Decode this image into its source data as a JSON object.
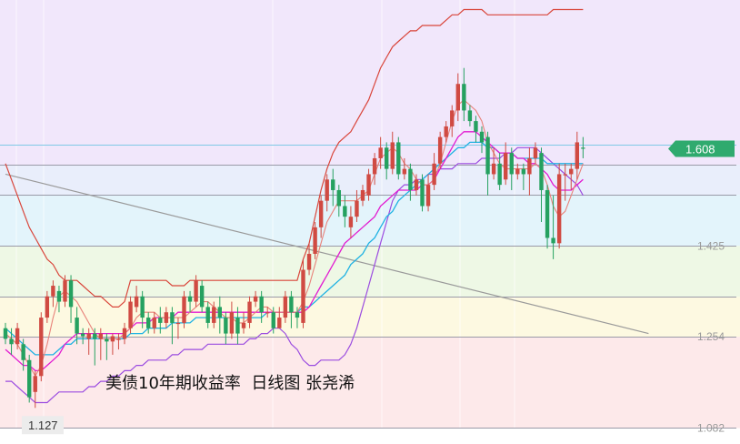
{
  "caption": "美债10年期收益率  日线图 张尧浠",
  "chart_data": {
    "type": "candlestick",
    "title": "美债10年期收益率  日线图 张尧浠",
    "y_ticks": [
      1.425,
      1.254,
      1.082
    ],
    "y_tick_labels": [
      "1.425",
      "1.254",
      "1.082"
    ],
    "last_price": 1.608,
    "last_price_label": "1.608",
    "low_label": "1.127",
    "low_value": 1.127,
    "ylim": [
      1.052,
      1.888
    ],
    "colors": {
      "up": "#d04a42",
      "down": "#25a160",
      "upper_band": "#d9453a",
      "lower_band": "#9b4ce0",
      "ma_short": "#e8827a",
      "ma_mid": "#e21bd1",
      "ma_long": "#1fb2e3",
      "trendline": "#9a9a9a",
      "last_label_bg": "#2faa6e"
    },
    "background_bands": [
      {
        "from": 1.578,
        "to": 1.888,
        "color": "#f1e7fb"
      },
      {
        "from": 1.521,
        "to": 1.578,
        "color": "#e9eefb"
      },
      {
        "from": 1.425,
        "to": 1.521,
        "color": "#e3f4fb"
      },
      {
        "from": 1.329,
        "to": 1.425,
        "color": "#eef8e5"
      },
      {
        "from": 1.254,
        "to": 1.329,
        "color": "#fdf9e1"
      },
      {
        "from": 1.082,
        "to": 1.254,
        "color": "#fde9ea"
      },
      {
        "from": 1.052,
        "to": 1.082,
        "color": "#ffffff"
      }
    ],
    "horizontal_lines": [
      1.616,
      1.578,
      1.521,
      1.425,
      1.329,
      1.254,
      1.082
    ],
    "trendline": [
      [
        0,
        1.56
      ],
      [
        108,
        1.26
      ]
    ],
    "candles": [
      [
        1.27,
        1.25,
        1.28,
        1.24
      ],
      [
        1.25,
        1.24,
        1.27,
        1.22
      ],
      [
        1.24,
        1.27,
        1.28,
        1.23
      ],
      [
        1.24,
        1.21,
        1.25,
        1.19
      ],
      [
        1.21,
        1.14,
        1.22,
        1.13
      ],
      [
        1.15,
        1.18,
        1.19,
        1.12
      ],
      [
        1.18,
        1.29,
        1.3,
        1.17
      ],
      [
        1.29,
        1.33,
        1.34,
        1.28
      ],
      [
        1.33,
        1.35,
        1.36,
        1.31
      ],
      [
        1.34,
        1.32,
        1.35,
        1.3
      ],
      [
        1.32,
        1.36,
        1.37,
        1.31
      ],
      [
        1.36,
        1.31,
        1.37,
        1.28
      ],
      [
        1.29,
        1.26,
        1.31,
        1.24
      ],
      [
        1.26,
        1.255,
        1.27,
        1.24
      ],
      [
        1.25,
        1.26,
        1.27,
        1.22
      ],
      [
        1.26,
        1.25,
        1.27,
        1.2
      ],
      [
        1.25,
        1.26,
        1.27,
        1.21
      ],
      [
        1.25,
        1.245,
        1.26,
        1.21
      ],
      [
        1.245,
        1.255,
        1.26,
        1.22
      ],
      [
        1.25,
        1.25,
        1.26,
        1.23
      ],
      [
        1.25,
        1.27,
        1.28,
        1.24
      ],
      [
        1.27,
        1.32,
        1.33,
        1.26
      ],
      [
        1.31,
        1.33,
        1.35,
        1.3
      ],
      [
        1.33,
        1.29,
        1.34,
        1.27
      ],
      [
        1.29,
        1.27,
        1.3,
        1.26
      ],
      [
        1.27,
        1.29,
        1.3,
        1.26
      ],
      [
        1.29,
        1.28,
        1.31,
        1.26
      ],
      [
        1.28,
        1.3,
        1.31,
        1.27
      ],
      [
        1.3,
        1.28,
        1.31,
        1.24
      ],
      [
        1.28,
        1.28,
        1.29,
        1.25
      ],
      [
        1.28,
        1.33,
        1.34,
        1.27
      ],
      [
        1.33,
        1.32,
        1.34,
        1.3
      ],
      [
        1.32,
        1.36,
        1.37,
        1.31
      ],
      [
        1.35,
        1.31,
        1.36,
        1.3
      ],
      [
        1.31,
        1.28,
        1.32,
        1.27
      ],
      [
        1.28,
        1.31,
        1.32,
        1.27
      ],
      [
        1.31,
        1.29,
        1.33,
        1.26
      ],
      [
        1.29,
        1.26,
        1.3,
        1.24
      ],
      [
        1.26,
        1.3,
        1.32,
        1.25
      ],
      [
        1.29,
        1.26,
        1.31,
        1.24
      ],
      [
        1.27,
        1.28,
        1.3,
        1.26
      ],
      [
        1.28,
        1.32,
        1.33,
        1.27
      ],
      [
        1.32,
        1.33,
        1.34,
        1.31
      ],
      [
        1.33,
        1.3,
        1.34,
        1.28
      ],
      [
        1.3,
        1.3,
        1.31,
        1.29
      ],
      [
        1.3,
        1.27,
        1.31,
        1.26
      ],
      [
        1.27,
        1.29,
        1.31,
        1.27
      ],
      [
        1.29,
        1.33,
        1.34,
        1.28
      ],
      [
        1.33,
        1.3,
        1.34,
        1.27
      ],
      [
        1.3,
        1.29,
        1.31,
        1.27
      ],
      [
        1.28,
        1.38,
        1.4,
        1.27
      ],
      [
        1.38,
        1.41,
        1.43,
        1.37
      ],
      [
        1.41,
        1.46,
        1.47,
        1.4
      ],
      [
        1.46,
        1.51,
        1.52,
        1.44
      ],
      [
        1.51,
        1.55,
        1.56,
        1.49
      ],
      [
        1.55,
        1.53,
        1.57,
        1.5
      ],
      [
        1.53,
        1.5,
        1.54,
        1.48
      ],
      [
        1.5,
        1.48,
        1.52,
        1.46
      ],
      [
        1.46,
        1.48,
        1.5,
        1.44
      ],
      [
        1.48,
        1.51,
        1.53,
        1.47
      ],
      [
        1.51,
        1.53,
        1.54,
        1.5
      ],
      [
        1.52,
        1.56,
        1.57,
        1.51
      ],
      [
        1.56,
        1.59,
        1.6,
        1.54
      ],
      [
        1.59,
        1.61,
        1.63,
        1.57
      ],
      [
        1.61,
        1.57,
        1.62,
        1.55
      ],
      [
        1.57,
        1.62,
        1.64,
        1.56
      ],
      [
        1.62,
        1.56,
        1.63,
        1.55
      ],
      [
        1.56,
        1.57,
        1.59,
        1.55
      ],
      [
        1.57,
        1.53,
        1.58,
        1.51
      ],
      [
        1.53,
        1.55,
        1.56,
        1.52
      ],
      [
        1.55,
        1.5,
        1.56,
        1.49
      ],
      [
        1.5,
        1.54,
        1.56,
        1.49
      ],
      [
        1.54,
        1.58,
        1.6,
        1.53
      ],
      [
        1.58,
        1.63,
        1.64,
        1.57
      ],
      [
        1.63,
        1.65,
        1.66,
        1.62
      ],
      [
        1.65,
        1.68,
        1.69,
        1.63
      ],
      [
        1.68,
        1.73,
        1.75,
        1.66
      ],
      [
        1.73,
        1.68,
        1.76,
        1.66
      ],
      [
        1.68,
        1.66,
        1.69,
        1.65
      ],
      [
        1.66,
        1.64,
        1.67,
        1.62
      ],
      [
        1.64,
        1.62,
        1.65,
        1.6
      ],
      [
        1.63,
        1.56,
        1.64,
        1.52
      ],
      [
        1.56,
        1.58,
        1.61,
        1.55
      ],
      [
        1.58,
        1.54,
        1.6,
        1.53
      ],
      [
        1.55,
        1.6,
        1.62,
        1.54
      ],
      [
        1.6,
        1.56,
        1.61,
        1.53
      ],
      [
        1.56,
        1.57,
        1.58,
        1.55
      ],
      [
        1.57,
        1.56,
        1.58,
        1.53
      ],
      [
        1.56,
        1.59,
        1.61,
        1.52
      ],
      [
        1.59,
        1.61,
        1.62,
        1.58
      ],
      [
        1.6,
        1.53,
        1.61,
        1.47
      ],
      [
        1.53,
        1.44,
        1.54,
        1.42
      ],
      [
        1.44,
        1.43,
        1.52,
        1.4
      ],
      [
        1.43,
        1.56,
        1.58,
        1.42
      ],
      [
        1.56,
        1.56,
        1.58,
        1.51
      ],
      [
        1.56,
        1.57,
        1.58,
        1.53
      ],
      [
        1.57,
        1.62,
        1.64,
        1.55
      ],
      [
        1.61,
        1.608,
        1.63,
        1.59
      ]
    ],
    "upper_band": [
      1.58,
      1.55,
      1.52,
      1.49,
      1.46,
      1.44,
      1.42,
      1.4,
      1.39,
      1.37,
      1.36,
      1.36,
      1.36,
      1.35,
      1.34,
      1.33,
      1.33,
      1.32,
      1.31,
      1.31,
      1.32,
      1.36,
      1.36,
      1.36,
      1.36,
      1.36,
      1.36,
      1.36,
      1.35,
      1.35,
      1.35,
      1.36,
      1.36,
      1.36,
      1.36,
      1.36,
      1.36,
      1.36,
      1.36,
      1.36,
      1.36,
      1.36,
      1.36,
      1.36,
      1.36,
      1.36,
      1.36,
      1.36,
      1.36,
      1.36,
      1.4,
      1.43,
      1.48,
      1.53,
      1.57,
      1.6,
      1.62,
      1.63,
      1.64,
      1.66,
      1.68,
      1.7,
      1.73,
      1.76,
      1.78,
      1.8,
      1.81,
      1.82,
      1.83,
      1.83,
      1.84,
      1.84,
      1.84,
      1.84,
      1.85,
      1.86,
      1.86,
      1.87,
      1.87,
      1.87,
      1.87,
      1.86,
      1.86,
      1.86,
      1.86,
      1.86,
      1.86,
      1.86,
      1.86,
      1.86,
      1.86,
      1.86,
      1.87,
      1.87,
      1.87,
      1.87,
      1.87,
      1.87
    ],
    "lower_band": [
      1.17,
      1.17,
      1.16,
      1.15,
      1.14,
      1.13,
      1.13,
      1.13,
      1.14,
      1.15,
      1.15,
      1.15,
      1.15,
      1.15,
      1.16,
      1.16,
      1.17,
      1.17,
      1.18,
      1.18,
      1.19,
      1.19,
      1.2,
      1.2,
      1.21,
      1.21,
      1.21,
      1.21,
      1.22,
      1.22,
      1.23,
      1.23,
      1.23,
      1.23,
      1.24,
      1.24,
      1.24,
      1.24,
      1.24,
      1.24,
      1.24,
      1.25,
      1.25,
      1.26,
      1.26,
      1.27,
      1.27,
      1.26,
      1.24,
      1.23,
      1.21,
      1.2,
      1.2,
      1.21,
      1.21,
      1.21,
      1.21,
      1.22,
      1.24,
      1.27,
      1.31,
      1.35,
      1.39,
      1.43,
      1.47,
      1.51,
      1.53,
      1.54,
      1.54,
      1.55,
      1.55,
      1.56,
      1.56,
      1.57,
      1.57,
      1.57,
      1.58,
      1.58,
      1.58,
      1.58,
      1.59,
      1.59,
      1.59,
      1.59,
      1.6,
      1.6,
      1.61,
      1.61,
      1.61,
      1.61,
      1.6,
      1.59,
      1.58,
      1.57,
      1.56,
      1.55,
      1.54,
      1.52
    ],
    "ma_short": [
      1.26,
      1.25,
      1.24,
      1.22,
      1.2,
      1.18,
      1.2,
      1.24,
      1.29,
      1.33,
      1.34,
      1.33,
      1.32,
      1.3,
      1.28,
      1.26,
      1.25,
      1.25,
      1.25,
      1.25,
      1.26,
      1.27,
      1.29,
      1.3,
      1.3,
      1.3,
      1.29,
      1.29,
      1.29,
      1.29,
      1.29,
      1.3,
      1.31,
      1.32,
      1.32,
      1.31,
      1.3,
      1.29,
      1.29,
      1.28,
      1.28,
      1.29,
      1.3,
      1.31,
      1.31,
      1.3,
      1.3,
      1.3,
      1.3,
      1.3,
      1.32,
      1.35,
      1.39,
      1.43,
      1.47,
      1.49,
      1.51,
      1.51,
      1.51,
      1.51,
      1.52,
      1.53,
      1.56,
      1.59,
      1.6,
      1.61,
      1.6,
      1.58,
      1.57,
      1.55,
      1.54,
      1.54,
      1.55,
      1.58,
      1.62,
      1.66,
      1.69,
      1.7,
      1.69,
      1.68,
      1.66,
      1.62,
      1.6,
      1.58,
      1.57,
      1.57,
      1.57,
      1.57,
      1.57,
      1.58,
      1.57,
      1.54,
      1.5,
      1.48,
      1.49,
      1.52,
      1.55,
      1.58
    ],
    "ma_mid": [
      1.23,
      1.22,
      1.21,
      1.2,
      1.2,
      1.19,
      1.19,
      1.2,
      1.21,
      1.22,
      1.24,
      1.25,
      1.26,
      1.26,
      1.26,
      1.26,
      1.26,
      1.26,
      1.26,
      1.26,
      1.26,
      1.27,
      1.28,
      1.28,
      1.28,
      1.29,
      1.29,
      1.29,
      1.29,
      1.3,
      1.3,
      1.3,
      1.3,
      1.3,
      1.3,
      1.3,
      1.3,
      1.3,
      1.3,
      1.3,
      1.3,
      1.3,
      1.3,
      1.3,
      1.3,
      1.3,
      1.3,
      1.3,
      1.3,
      1.3,
      1.3,
      1.31,
      1.33,
      1.35,
      1.37,
      1.39,
      1.41,
      1.43,
      1.44,
      1.45,
      1.46,
      1.47,
      1.48,
      1.5,
      1.51,
      1.52,
      1.53,
      1.53,
      1.53,
      1.53,
      1.54,
      1.54,
      1.55,
      1.57,
      1.59,
      1.61,
      1.63,
      1.64,
      1.64,
      1.64,
      1.63,
      1.62,
      1.61,
      1.6,
      1.6,
      1.6,
      1.59,
      1.59,
      1.58,
      1.58,
      1.57,
      1.56,
      1.54,
      1.53,
      1.53,
      1.53,
      1.54,
      1.55
    ],
    "ma_long": [
      1.27,
      1.26,
      1.25,
      1.24,
      1.23,
      1.22,
      1.22,
      1.22,
      1.22,
      1.23,
      1.24,
      1.24,
      1.25,
      1.25,
      1.25,
      1.25,
      1.25,
      1.25,
      1.25,
      1.25,
      1.25,
      1.26,
      1.26,
      1.26,
      1.27,
      1.27,
      1.27,
      1.27,
      1.28,
      1.28,
      1.28,
      1.28,
      1.29,
      1.29,
      1.29,
      1.29,
      1.29,
      1.29,
      1.29,
      1.29,
      1.29,
      1.29,
      1.29,
      1.29,
      1.3,
      1.3,
      1.3,
      1.3,
      1.3,
      1.3,
      1.31,
      1.31,
      1.32,
      1.33,
      1.34,
      1.35,
      1.36,
      1.37,
      1.39,
      1.4,
      1.41,
      1.43,
      1.44,
      1.46,
      1.48,
      1.49,
      1.51,
      1.52,
      1.53,
      1.54,
      1.55,
      1.56,
      1.57,
      1.58,
      1.59,
      1.6,
      1.61,
      1.61,
      1.62,
      1.62,
      1.62,
      1.61,
      1.61,
      1.6,
      1.6,
      1.6,
      1.59,
      1.59,
      1.59,
      1.59,
      1.59,
      1.58,
      1.58,
      1.58,
      1.58,
      1.58,
      1.58,
      1.58
    ]
  }
}
